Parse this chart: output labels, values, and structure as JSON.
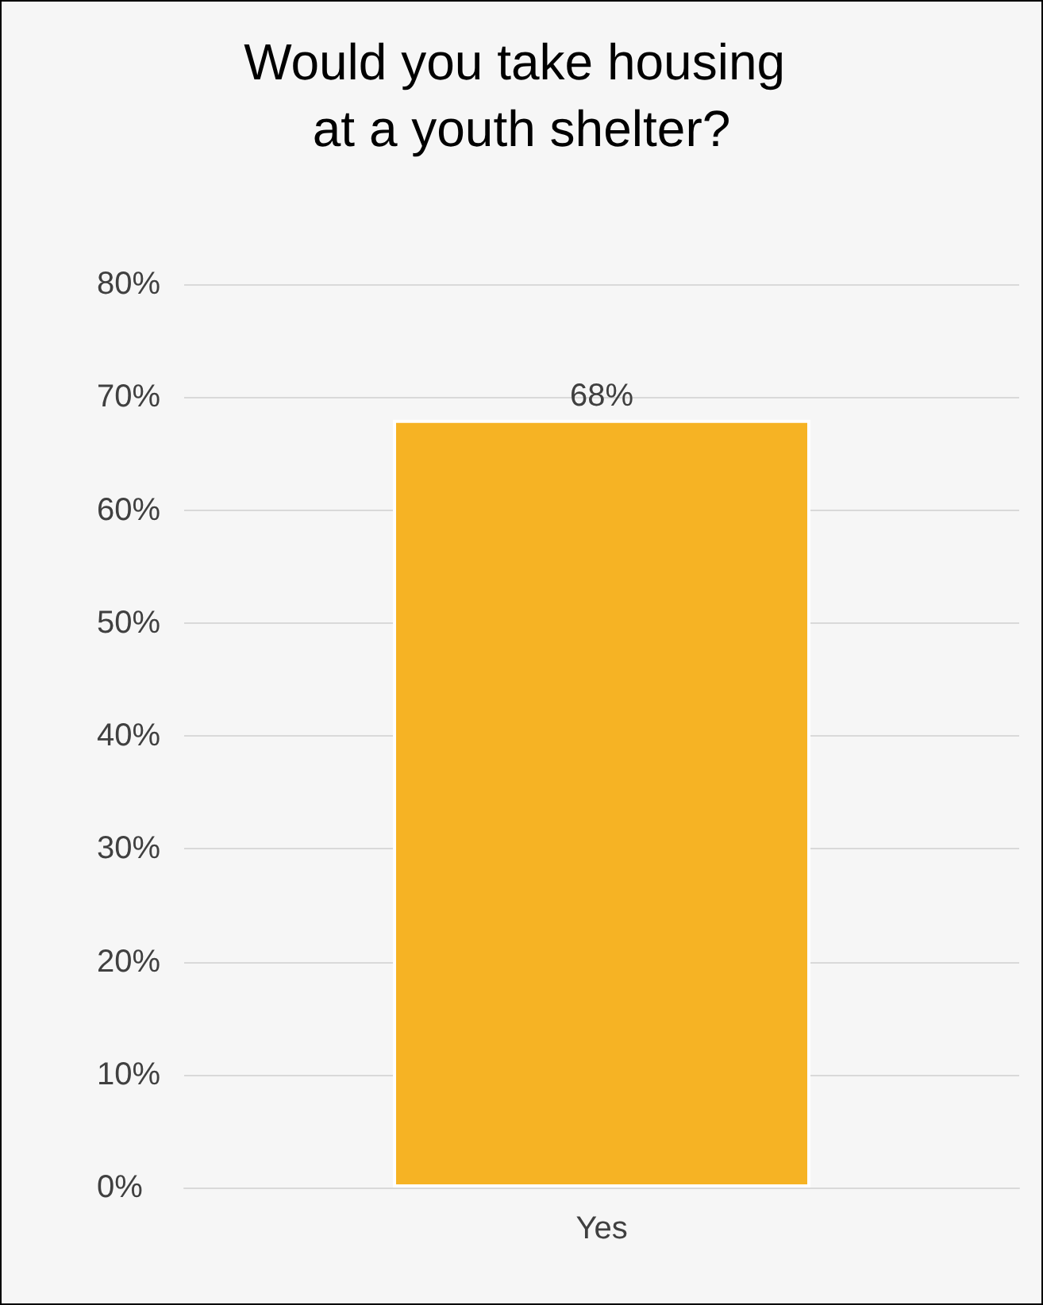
{
  "chart_data": {
    "type": "bar",
    "title": "Would you take housing at a youth shelter?",
    "categories": [
      "Yes"
    ],
    "values": [
      68
    ],
    "value_labels": [
      "68%"
    ],
    "color": "#f6b324",
    "ylim": [
      0,
      80
    ],
    "yticks": [
      {
        "value": 0,
        "label": "0%"
      },
      {
        "value": 10,
        "label": "10%"
      },
      {
        "value": 20,
        "label": "20%"
      },
      {
        "value": 30,
        "label": "30%"
      },
      {
        "value": 40,
        "label": "40%"
      },
      {
        "value": 50,
        "label": "50%"
      },
      {
        "value": 60,
        "label": "60%"
      },
      {
        "value": 70,
        "label": "70%"
      },
      {
        "value": 80,
        "label": "80%"
      }
    ],
    "grid": "y"
  }
}
